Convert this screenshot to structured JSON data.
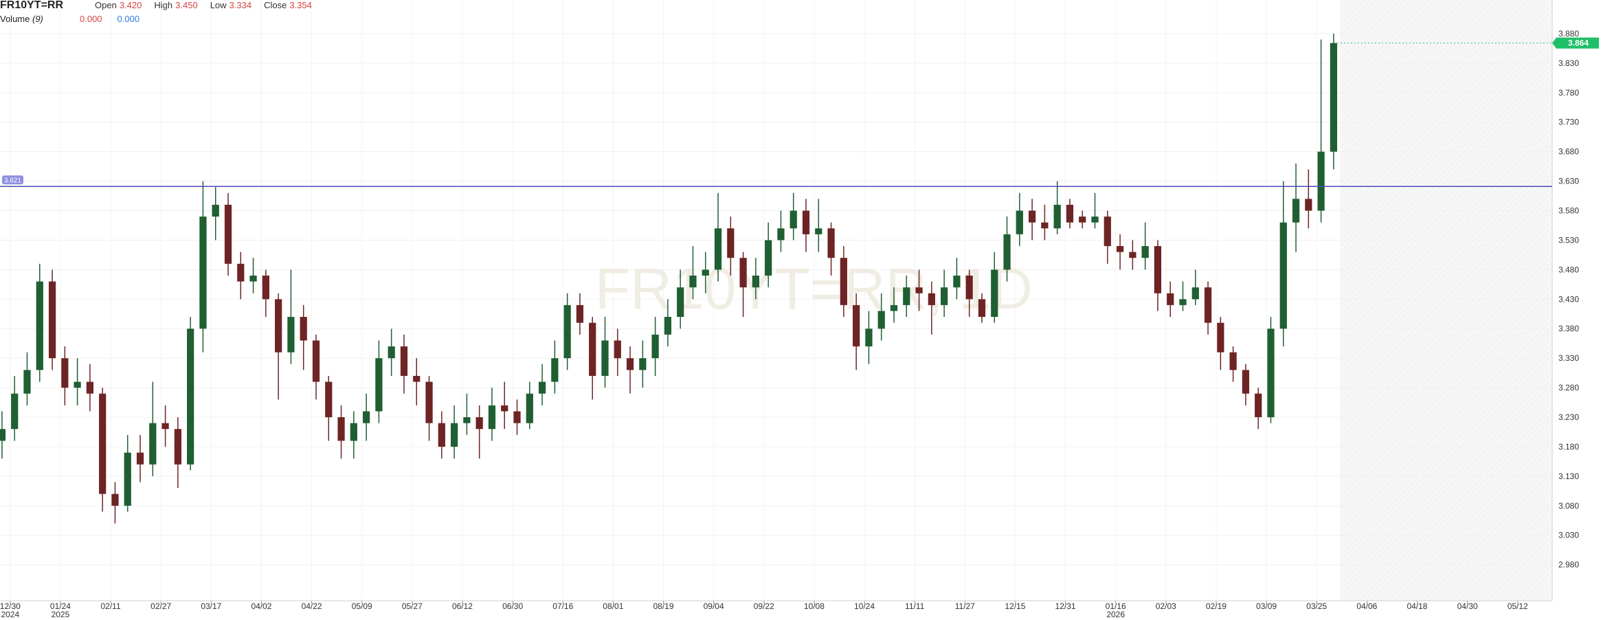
{
  "header": {
    "symbol": "FR10YT=RR",
    "open_label": "Open",
    "open": "3.420",
    "high_label": "High",
    "high": "3.450",
    "low_label": "Low",
    "low": "3.334",
    "close_label": "Close",
    "close": "3.354",
    "volume_label": "Volume",
    "volume_period": "(9)",
    "volume_value_1": "0.000",
    "volume_value_2": "0.000"
  },
  "chart_data": {
    "type": "candlestick",
    "watermark": "FR10YT=RR, 1D",
    "up_color": "#1f5f33",
    "down_color": "#6e2424",
    "open": [
      3.19,
      3.21,
      3.27,
      3.31,
      3.46,
      3.33,
      3.28,
      3.29,
      3.27,
      3.1,
      3.08,
      3.17,
      3.15,
      3.22,
      3.21,
      3.15,
      3.38,
      3.57,
      3.59,
      3.49,
      3.46,
      3.47,
      3.43,
      3.34,
      3.4,
      3.36,
      3.29,
      3.23,
      3.19,
      3.22,
      3.24,
      3.33,
      3.35,
      3.3,
      3.29,
      3.22,
      3.18,
      3.22,
      3.23,
      3.21,
      3.25,
      3.24,
      3.22,
      3.27,
      3.29,
      3.33,
      3.42,
      3.39,
      3.3,
      3.36,
      3.33,
      3.31,
      3.33,
      3.37,
      3.4,
      3.45,
      3.47,
      3.48,
      3.55,
      3.5,
      3.45,
      3.47,
      3.53,
      3.55,
      3.58,
      3.54,
      3.55,
      3.5,
      3.42,
      3.35,
      3.38,
      3.41,
      3.42,
      3.45,
      3.44,
      3.42,
      3.45,
      3.47,
      3.43,
      3.4,
      3.48,
      3.54,
      3.58,
      3.56,
      3.55,
      3.59,
      3.57,
      3.56,
      3.57,
      3.52,
      3.51,
      3.5,
      3.52,
      3.44,
      3.42,
      3.43,
      3.45,
      3.39,
      3.34,
      3.31,
      3.27,
      3.23,
      3.38,
      3.56,
      3.6,
      3.58,
      3.68
    ],
    "high": [
      3.24,
      3.3,
      3.34,
      3.49,
      3.48,
      3.35,
      3.33,
      3.32,
      3.28,
      3.12,
      3.2,
      3.2,
      3.29,
      3.25,
      3.23,
      3.4,
      3.63,
      3.62,
      3.61,
      3.51,
      3.5,
      3.48,
      3.44,
      3.48,
      3.42,
      3.37,
      3.3,
      3.25,
      3.24,
      3.27,
      3.36,
      3.38,
      3.37,
      3.33,
      3.3,
      3.24,
      3.25,
      3.27,
      3.25,
      3.28,
      3.29,
      3.26,
      3.29,
      3.32,
      3.36,
      3.44,
      3.44,
      3.4,
      3.4,
      3.38,
      3.35,
      3.36,
      3.4,
      3.43,
      3.48,
      3.52,
      3.51,
      3.61,
      3.57,
      3.51,
      3.5,
      3.56,
      3.58,
      3.61,
      3.6,
      3.6,
      3.56,
      3.52,
      3.44,
      3.41,
      3.44,
      3.45,
      3.47,
      3.48,
      3.46,
      3.48,
      3.5,
      3.48,
      3.44,
      3.51,
      3.57,
      3.61,
      3.6,
      3.59,
      3.63,
      3.6,
      3.58,
      3.61,
      3.58,
      3.54,
      3.53,
      3.56,
      3.53,
      3.46,
      3.46,
      3.48,
      3.46,
      3.4,
      3.35,
      3.32,
      3.28,
      3.4,
      3.63,
      3.66,
      3.65,
      3.87,
      3.88
    ],
    "low": [
      3.16,
      3.19,
      3.25,
      3.29,
      3.31,
      3.25,
      3.25,
      3.24,
      3.07,
      3.05,
      3.07,
      3.12,
      3.13,
      3.18,
      3.11,
      3.14,
      3.34,
      3.53,
      3.47,
      3.43,
      3.44,
      3.4,
      3.26,
      3.32,
      3.31,
      3.26,
      3.19,
      3.16,
      3.16,
      3.19,
      3.22,
      3.3,
      3.27,
      3.25,
      3.19,
      3.16,
      3.16,
      3.2,
      3.16,
      3.19,
      3.21,
      3.2,
      3.21,
      3.25,
      3.27,
      3.31,
      3.37,
      3.26,
      3.28,
      3.3,
      3.27,
      3.28,
      3.3,
      3.35,
      3.38,
      3.43,
      3.44,
      3.46,
      3.47,
      3.4,
      3.43,
      3.45,
      3.51,
      3.53,
      3.51,
      3.51,
      3.47,
      3.4,
      3.31,
      3.32,
      3.36,
      3.39,
      3.4,
      3.41,
      3.37,
      3.4,
      3.43,
      3.4,
      3.39,
      3.39,
      3.46,
      3.52,
      3.53,
      3.53,
      3.54,
      3.55,
      3.55,
      3.55,
      3.49,
      3.48,
      3.48,
      3.48,
      3.41,
      3.4,
      3.41,
      3.42,
      3.37,
      3.31,
      3.29,
      3.25,
      3.21,
      3.22,
      3.35,
      3.51,
      3.55,
      3.56,
      3.65
    ],
    "close": [
      3.21,
      3.27,
      3.31,
      3.46,
      3.33,
      3.28,
      3.29,
      3.27,
      3.1,
      3.08,
      3.17,
      3.15,
      3.22,
      3.21,
      3.15,
      3.38,
      3.57,
      3.59,
      3.49,
      3.46,
      3.47,
      3.43,
      3.34,
      3.4,
      3.36,
      3.29,
      3.23,
      3.19,
      3.22,
      3.24,
      3.33,
      3.35,
      3.3,
      3.29,
      3.22,
      3.18,
      3.22,
      3.23,
      3.21,
      3.25,
      3.24,
      3.22,
      3.27,
      3.29,
      3.33,
      3.42,
      3.39,
      3.3,
      3.36,
      3.33,
      3.31,
      3.33,
      3.37,
      3.4,
      3.45,
      3.47,
      3.48,
      3.55,
      3.5,
      3.45,
      3.47,
      3.53,
      3.55,
      3.58,
      3.54,
      3.55,
      3.5,
      3.42,
      3.35,
      3.38,
      3.41,
      3.42,
      3.45,
      3.44,
      3.42,
      3.45,
      3.47,
      3.43,
      3.4,
      3.48,
      3.54,
      3.58,
      3.56,
      3.55,
      3.59,
      3.56,
      3.56,
      3.57,
      3.52,
      3.51,
      3.5,
      3.52,
      3.44,
      3.42,
      3.43,
      3.45,
      3.39,
      3.34,
      3.31,
      3.27,
      3.23,
      3.38,
      3.56,
      3.6,
      3.58,
      3.68,
      3.864
    ],
    "last_price_color": "#1fbf68",
    "hline": {
      "value": 3.621,
      "label": "3.621",
      "color": "#4b4bb8"
    },
    "xlim": [
      -0.16,
      123.4
    ],
    "ylim": [
      2.919,
      3.937
    ],
    "grid": true,
    "xticks": [
      {
        "value": 0.65,
        "label": "12/30",
        "year": "2024"
      },
      {
        "value": 4.65,
        "label": "01/24",
        "year": "2025"
      },
      {
        "value": 8.65,
        "label": "02/11"
      },
      {
        "value": 12.65,
        "label": "02/27"
      },
      {
        "value": 16.65,
        "label": "03/17"
      },
      {
        "value": 20.65,
        "label": "04/02"
      },
      {
        "value": 24.65,
        "label": "04/22"
      },
      {
        "value": 28.65,
        "label": "05/09"
      },
      {
        "value": 32.65,
        "label": "05/27"
      },
      {
        "value": 36.65,
        "label": "06/12"
      },
      {
        "value": 40.65,
        "label": "06/30"
      },
      {
        "value": 44.65,
        "label": "07/16"
      },
      {
        "value": 48.65,
        "label": "08/01"
      },
      {
        "value": 52.65,
        "label": "08/19"
      },
      {
        "value": 56.65,
        "label": "09/04"
      },
      {
        "value": 60.65,
        "label": "09/22"
      },
      {
        "value": 64.65,
        "label": "10/08"
      },
      {
        "value": 68.65,
        "label": "10/24"
      },
      {
        "value": 72.65,
        "label": "11/11"
      },
      {
        "value": 76.65,
        "label": "11/27"
      },
      {
        "value": 80.65,
        "label": "12/15"
      },
      {
        "value": 84.65,
        "label": "12/31"
      },
      {
        "value": 88.65,
        "label": "01/16",
        "year": "2026"
      },
      {
        "value": 92.65,
        "label": "02/03"
      },
      {
        "value": 96.65,
        "label": "02/19"
      },
      {
        "value": 100.65,
        "label": "03/09"
      },
      {
        "value": 104.65,
        "label": "03/25"
      },
      {
        "value": 108.65,
        "label": "04/06"
      },
      {
        "value": 112.65,
        "label": "04/18"
      },
      {
        "value": 116.65,
        "label": "04/30"
      },
      {
        "value": 120.65,
        "label": "05/12"
      }
    ],
    "yticks": [
      {
        "value": 2.98,
        "label": "2.980"
      },
      {
        "value": 3.03,
        "label": "3.030"
      },
      {
        "value": 3.08,
        "label": "3.080"
      },
      {
        "value": 3.13,
        "label": "3.130"
      },
      {
        "value": 3.18,
        "label": "3.180"
      },
      {
        "value": 3.23,
        "label": "3.230"
      },
      {
        "value": 3.28,
        "label": "3.280"
      },
      {
        "value": 3.33,
        "label": "3.330"
      },
      {
        "value": 3.38,
        "label": "3.380"
      },
      {
        "value": 3.43,
        "label": "3.430"
      },
      {
        "value": 3.48,
        "label": "3.480"
      },
      {
        "value": 3.53,
        "label": "3.530"
      },
      {
        "value": 3.58,
        "label": "3.580"
      },
      {
        "value": 3.63,
        "label": "3.630"
      },
      {
        "value": 3.68,
        "label": "3.680"
      },
      {
        "value": 3.73,
        "label": "3.730"
      },
      {
        "value": 3.78,
        "label": "3.780"
      },
      {
        "value": 3.83,
        "label": "3.830"
      },
      {
        "value": 3.88,
        "label": "3.880"
      }
    ]
  }
}
